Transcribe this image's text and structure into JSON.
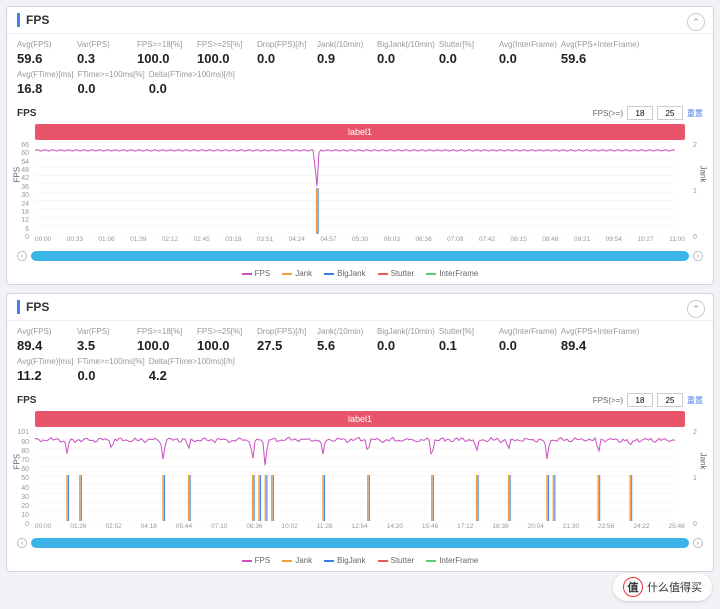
{
  "panels": [
    {
      "title": "FPS",
      "metrics": [
        {
          "lbl": "Avg(FPS)",
          "val": "59.6"
        },
        {
          "lbl": "Var(FPS)",
          "val": "0.3"
        },
        {
          "lbl": "FPS>=18[%]",
          "val": "100.0"
        },
        {
          "lbl": "FPS>=25[%]",
          "val": "100.0"
        },
        {
          "lbl": "Drop(FPS)[/h]",
          "val": "0.0"
        },
        {
          "lbl": "Jank(/10min)",
          "val": "0.9"
        },
        {
          "lbl": "BigJank(/10min)",
          "val": "0.0"
        },
        {
          "lbl": "Stutter[%]",
          "val": "0.0"
        },
        {
          "lbl": "Avg(InterFrame)",
          "val": "0.0"
        },
        {
          "lbl": "Avg(FPS+InterFrame)",
          "val": "59.6"
        },
        {
          "lbl": "Avg(FTime)[ms]",
          "val": "16.8"
        },
        {
          "lbl": "FTime>=100ms[%]",
          "val": "0.0"
        },
        {
          "lbl": "Delta(FTime>100ms)[/h]",
          "val": "0.0"
        }
      ],
      "chart": {
        "title": "FPS",
        "banner": "label1",
        "fps_ctrl": {
          "label": "FPS(>=)",
          "v1": "18",
          "v2": "25",
          "link": "重置"
        },
        "yl": {
          "label": "FPS",
          "ticks": [
            0,
            6,
            12,
            18,
            24,
            30,
            36,
            42,
            48,
            54,
            60,
            66
          ]
        },
        "yr": {
          "label": "Jank",
          "ticks": [
            0,
            1,
            2
          ]
        },
        "xticks": [
          "00:00",
          "00:33",
          "01:06",
          "01:39",
          "02:12",
          "02:45",
          "03:18",
          "03:51",
          "04:24",
          "04:57",
          "05:30",
          "06:03",
          "06:36",
          "07:09",
          "07:42",
          "08:15",
          "08:48",
          "09:21",
          "09:54",
          "10:27",
          "11:00"
        ],
        "colors": {
          "fps": "#c94fc0",
          "jank": "#f0a03c",
          "bigjank": "#3a7ee0",
          "stutter": "#e85a5a",
          "interframe": "#5ac97a",
          "grid": "#eeeeee",
          "band": "#e8556a",
          "slider": "#3db4e8"
        },
        "fps_line": 60,
        "fps_max": 66,
        "jank_spikes": [
          {
            "x": 0.44,
            "h": 1.0
          }
        ],
        "fps_dips": [
          {
            "x": 0.44,
            "d": 30
          }
        ]
      },
      "legend": [
        {
          "name": "FPS",
          "color": "#c94fc0"
        },
        {
          "name": "Jank",
          "color": "#f0a03c"
        },
        {
          "name": "BigJank",
          "color": "#3a7ee0"
        },
        {
          "name": "Stutter",
          "color": "#e85a5a"
        },
        {
          "name": "InterFrame",
          "color": "#5ac97a"
        }
      ]
    },
    {
      "title": "FPS",
      "metrics": [
        {
          "lbl": "Avg(FPS)",
          "val": "89.4"
        },
        {
          "lbl": "Var(FPS)",
          "val": "3.5"
        },
        {
          "lbl": "FPS>=18[%]",
          "val": "100.0"
        },
        {
          "lbl": "FPS>=25[%]",
          "val": "100.0"
        },
        {
          "lbl": "Drop(FPS)[/h]",
          "val": "27.5"
        },
        {
          "lbl": "Jank(/10min)",
          "val": "5.6"
        },
        {
          "lbl": "BigJank(/10min)",
          "val": "0.0"
        },
        {
          "lbl": "Stutter[%]",
          "val": "0.1"
        },
        {
          "lbl": "Avg(InterFrame)",
          "val": "0.0"
        },
        {
          "lbl": "Avg(FPS+InterFrame)",
          "val": "89.4"
        },
        {
          "lbl": "Avg(FTime)[ms]",
          "val": "11.2"
        },
        {
          "lbl": "FTime>=100ms[%]",
          "val": "0.0"
        },
        {
          "lbl": "Delta(FTime>100ms)[/h]",
          "val": "4.2"
        }
      ],
      "chart": {
        "title": "FPS",
        "banner": "label1",
        "fps_ctrl": {
          "label": "FPS(>=)",
          "v1": "18",
          "v2": "25",
          "link": "重置"
        },
        "yl": {
          "label": "FPS",
          "ticks": [
            0,
            10,
            20,
            30,
            40,
            50,
            60,
            70,
            80,
            90,
            101
          ]
        },
        "yr": {
          "label": "Jank",
          "ticks": [
            0,
            1,
            2
          ]
        },
        "xticks": [
          "00:00",
          "01:26",
          "02:52",
          "04:18",
          "05:44",
          "07:10",
          "08:36",
          "10:02",
          "11:28",
          "12:54",
          "14:20",
          "15:46",
          "17:12",
          "18:38",
          "20:04",
          "21:30",
          "22:56",
          "24:22",
          "25:48"
        ],
        "colors": {
          "fps": "#c94fc0",
          "jank": "#f0a03c",
          "bigjank": "#3a7ee0",
          "stutter": "#e85a5a",
          "interframe": "#5ac97a",
          "grid": "#eeeeee",
          "band": "#e8556a",
          "slider": "#3db4e8"
        },
        "fps_line": 89,
        "fps_max": 101,
        "jank_spikes": [
          {
            "x": 0.05,
            "h": 1
          },
          {
            "x": 0.07,
            "h": 1
          },
          {
            "x": 0.2,
            "h": 1
          },
          {
            "x": 0.24,
            "h": 1
          },
          {
            "x": 0.34,
            "h": 1
          },
          {
            "x": 0.35,
            "h": 1
          },
          {
            "x": 0.36,
            "h": 1
          },
          {
            "x": 0.37,
            "h": 1
          },
          {
            "x": 0.45,
            "h": 1
          },
          {
            "x": 0.52,
            "h": 1
          },
          {
            "x": 0.62,
            "h": 1
          },
          {
            "x": 0.69,
            "h": 1
          },
          {
            "x": 0.74,
            "h": 1
          },
          {
            "x": 0.8,
            "h": 1
          },
          {
            "x": 0.81,
            "h": 1
          },
          {
            "x": 0.88,
            "h": 1
          },
          {
            "x": 0.93,
            "h": 1
          }
        ],
        "fps_dips": [
          {
            "x": 0.05,
            "d": 15
          },
          {
            "x": 0.12,
            "d": 10
          },
          {
            "x": 0.2,
            "d": 20
          },
          {
            "x": 0.24,
            "d": 12
          },
          {
            "x": 0.34,
            "d": 25
          },
          {
            "x": 0.36,
            "d": 30
          },
          {
            "x": 0.45,
            "d": 18
          },
          {
            "x": 0.52,
            "d": 14
          },
          {
            "x": 0.62,
            "d": 20
          },
          {
            "x": 0.69,
            "d": 16
          },
          {
            "x": 0.74,
            "d": 12
          },
          {
            "x": 0.8,
            "d": 22
          },
          {
            "x": 0.88,
            "d": 15
          },
          {
            "x": 0.93,
            "d": 10
          }
        ],
        "noisy": true
      },
      "legend": [
        {
          "name": "FPS",
          "color": "#c94fc0"
        },
        {
          "name": "Jank",
          "color": "#f0a03c"
        },
        {
          "name": "BigJank",
          "color": "#3a7ee0"
        },
        {
          "name": "Stutter",
          "color": "#e85a5a"
        },
        {
          "name": "InterFrame",
          "color": "#5ac97a"
        }
      ]
    }
  ],
  "watermark": {
    "icon": "值",
    "text": "什么值得买"
  }
}
